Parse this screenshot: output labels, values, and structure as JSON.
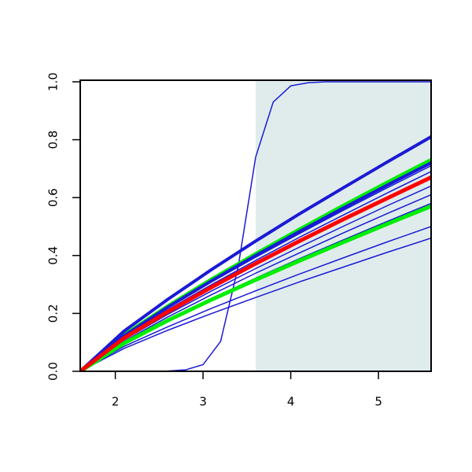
{
  "chart_data": {
    "type": "line",
    "x": [
      1.6,
      2.1,
      2.6,
      3.1,
      3.6,
      4.1,
      4.6,
      5.1,
      5.6
    ],
    "xlim": [
      1.6,
      5.6
    ],
    "ylim": [
      0,
      1
    ],
    "xticks": [
      2,
      3,
      4,
      5
    ],
    "yticks": [
      {
        "value": 0,
        "label": "0.0"
      },
      {
        "value": 0.2,
        "label": "0.2"
      },
      {
        "value": 0.4,
        "label": "0.4"
      },
      {
        "value": 0.6,
        "label": "0.6"
      },
      {
        "value": 0.8,
        "label": "0.8"
      },
      {
        "value": 1,
        "label": "1.0"
      }
    ],
    "shaded_region": [
      3.6,
      5.6
    ],
    "shade_color": "#e0ecec",
    "series": [
      {
        "color": "#1a1ad6",
        "linewidth": 1.5,
        "x": [
          1.6,
          1.8,
          2.0,
          2.2,
          2.4,
          2.6,
          2.8,
          3.0,
          3.2,
          3.4,
          3.6,
          3.8,
          4.0,
          4.2,
          4.4,
          4.6,
          4.8,
          5.0,
          5.2,
          5.4,
          5.6
        ],
        "values": [
          0,
          0,
          0,
          0,
          0,
          0.001,
          0.005,
          0.023,
          0.103,
          0.36,
          0.74,
          0.93,
          0.986,
          0.997,
          1,
          1,
          1,
          1,
          1,
          1,
          1
        ]
      },
      {
        "color": "#1a1ad6",
        "linewidth": 1.5,
        "values": [
          0,
          0.079,
          0.142,
          0.2,
          0.255,
          0.309,
          0.36,
          0.411,
          0.46
        ]
      },
      {
        "color": "#1a1ad6",
        "linewidth": 1.5,
        "values": [
          0,
          0.086,
          0.154,
          0.218,
          0.278,
          0.336,
          0.392,
          0.447,
          0.5
        ]
      },
      {
        "color": "#1a1ad6",
        "linewidth": 1.5,
        "values": [
          0,
          0.099,
          0.179,
          0.252,
          0.322,
          0.389,
          0.454,
          0.518,
          0.58
        ]
      },
      {
        "color": "#1a1ad6",
        "linewidth": 1.5,
        "values": [
          0,
          0.104,
          0.188,
          0.265,
          0.339,
          0.409,
          0.478,
          0.545,
          0.61
        ]
      },
      {
        "color": "#1a1ad6",
        "linewidth": 1.5,
        "values": [
          0,
          0.109,
          0.197,
          0.278,
          0.355,
          0.429,
          0.501,
          0.572,
          0.64
        ]
      },
      {
        "color": "#1a1ad6",
        "linewidth": 1.5,
        "values": [
          0,
          0.118,
          0.213,
          0.3,
          0.383,
          0.463,
          0.54,
          0.616,
          0.69
        ]
      },
      {
        "color": "#1a1ad6",
        "linewidth": 1.5,
        "values": [
          0,
          0.121,
          0.219,
          0.309,
          0.394,
          0.476,
          0.556,
          0.634,
          0.71
        ]
      },
      {
        "color": "#00ee00",
        "linewidth": 5,
        "values": [
          0,
          0.097,
          0.176,
          0.248,
          0.316,
          0.382,
          0.446,
          0.509,
          0.57
        ]
      },
      {
        "color": "#00ee00",
        "linewidth": 5,
        "values": [
          0,
          0.125,
          0.225,
          0.318,
          0.405,
          0.49,
          0.572,
          0.652,
          0.73
        ]
      },
      {
        "color": "#1a1ad6",
        "linewidth": 4,
        "values": [
          0,
          0.123,
          0.222,
          0.313,
          0.4,
          0.483,
          0.564,
          0.643,
          0.72
        ]
      },
      {
        "color": "#1a1ad6",
        "linewidth": 4,
        "values": [
          0,
          0.139,
          0.249,
          0.352,
          0.45,
          0.544,
          0.634,
          0.723,
          0.81
        ]
      },
      {
        "color": "#ff0000",
        "linewidth": 5,
        "values": [
          0,
          0.115,
          0.206,
          0.291,
          0.372,
          0.45,
          0.525,
          0.598,
          0.67
        ]
      }
    ]
  }
}
